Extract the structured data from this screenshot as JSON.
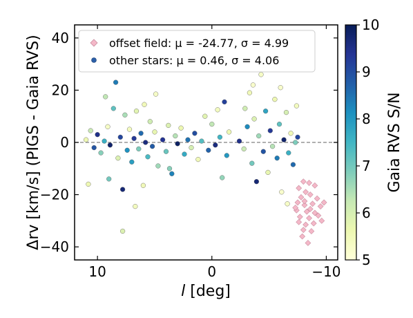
{
  "chart_data": {
    "type": "scatter",
    "xlabel": "l [deg]",
    "xlabel_italic_part": "l",
    "xlabel_rest": " [deg]",
    "ylabel": "Δrv [km/s] (PIGS - Gaia RVS)",
    "xlim": [
      12,
      -11
    ],
    "ylim": [
      -45,
      45
    ],
    "x_ticks": [
      10,
      0,
      -10
    ],
    "x_tick_labels": [
      "10",
      "0",
      "−10"
    ],
    "y_ticks": [
      -40,
      -20,
      0,
      20,
      40
    ],
    "y_tick_labels": [
      "−40",
      "−20",
      "0",
      "20",
      "40"
    ],
    "reference_line": {
      "y": 0,
      "style": "dashed",
      "color": "#808080"
    },
    "colorbar": {
      "label": "Gaia RVS S/N",
      "range": [
        5,
        10
      ],
      "ticks": [
        5,
        6,
        7,
        8,
        9,
        10
      ],
      "tick_labels": [
        "5",
        "6",
        "7",
        "8",
        "9",
        "10"
      ],
      "colormap": "YlGnBu",
      "stops": [
        "#ffffd9",
        "#edf8b1",
        "#c7e9b4",
        "#7fcdbb",
        "#41b6c4",
        "#1d91c0",
        "#225ea8",
        "#253494",
        "#081d58"
      ]
    },
    "legend": {
      "placement": "top-center",
      "entries": [
        {
          "marker": "diamond",
          "color": "#f4b8c8",
          "edge": "#c98ea0",
          "label": "offset field: μ = -24.77, σ = 4.99"
        },
        {
          "marker": "circle",
          "color": "#2c5fa8",
          "edge": "#1a3c70",
          "label": "other stars: μ = 0.46, σ = 4.06"
        }
      ]
    },
    "series": [
      {
        "name": "offset field: μ = -24.77, σ = 4.99",
        "marker": "diamond",
        "color": "#f4b8c8",
        "points": [
          [
            -7.6,
            -17.5
          ],
          [
            -8.0,
            -15.0
          ],
          [
            -8.5,
            -15.5
          ],
          [
            -9.0,
            -16.5
          ],
          [
            -8.2,
            -19.0
          ],
          [
            -7.8,
            -21.0
          ],
          [
            -8.6,
            -20.0
          ],
          [
            -9.2,
            -21.5
          ],
          [
            -7.5,
            -23.0
          ],
          [
            -8.1,
            -24.0
          ],
          [
            -8.8,
            -23.5
          ],
          [
            -9.5,
            -24.5
          ],
          [
            -7.4,
            -26.0
          ],
          [
            -8.3,
            -26.5
          ],
          [
            -9.0,
            -27.0
          ],
          [
            -7.7,
            -28.5
          ],
          [
            -8.5,
            -29.0
          ],
          [
            -9.3,
            -28.0
          ],
          [
            -7.6,
            -30.5
          ],
          [
            -8.2,
            -31.5
          ],
          [
            -8.9,
            -31.0
          ],
          [
            -9.6,
            -30.0
          ],
          [
            -8.0,
            -33.5
          ],
          [
            -8.7,
            -34.0
          ],
          [
            -7.9,
            -36.0
          ],
          [
            -8.4,
            -38.5
          ],
          [
            -8.1,
            -22.5
          ],
          [
            -9.8,
            -23.0
          ],
          [
            -7.3,
            -25.0
          ],
          [
            -8.6,
            -25.5
          ]
        ]
      },
      {
        "name": "other stars: μ = 0.46, σ = 4.06",
        "marker": "circle",
        "color_by": "Gaia RVS S/N",
        "points": [
          [
            11.0,
            1.0,
            5.6
          ],
          [
            10.6,
            4.5,
            6.2
          ],
          [
            10.3,
            -2.0,
            8.9
          ],
          [
            10.0,
            3.0,
            9.5
          ],
          [
            9.7,
            -4.0,
            6.8
          ],
          [
            9.4,
            0.5,
            7.6
          ],
          [
            9.1,
            6.0,
            5.3
          ],
          [
            8.9,
            -1.0,
            9.8
          ],
          [
            8.6,
            13.0,
            7.2
          ],
          [
            8.4,
            23.0,
            8.4
          ],
          [
            8.2,
            -6.0,
            5.9
          ],
          [
            8.0,
            2.0,
            9.1
          ],
          [
            7.8,
            -18.0,
            9.7
          ],
          [
            7.6,
            10.5,
            6.5
          ],
          [
            7.4,
            -3.0,
            8.1
          ],
          [
            7.2,
            5.0,
            5.4
          ],
          [
            7.0,
            -7.5,
            7.9
          ],
          [
            6.8,
            1.5,
            9.3
          ],
          [
            6.6,
            12.0,
            5.8
          ],
          [
            6.4,
            -2.5,
            6.9
          ],
          [
            6.2,
            3.5,
            8.6
          ],
          [
            6.0,
            -16.5,
            5.5
          ],
          [
            5.8,
            0.0,
            9.6
          ],
          [
            5.6,
            -5.5,
            7.4
          ],
          [
            5.4,
            8.0,
            6.1
          ],
          [
            5.2,
            -1.5,
            8.8
          ],
          [
            5.0,
            4.0,
            5.7
          ],
          [
            4.7,
            -9.0,
            6.6
          ],
          [
            4.5,
            28.0,
            5.3
          ],
          [
            4.3,
            1.0,
            9.4
          ],
          [
            4.0,
            -3.5,
            7.1
          ],
          [
            3.8,
            6.5,
            5.9
          ],
          [
            3.5,
            -12.0,
            8.3
          ],
          [
            3.2,
            2.5,
            6.4
          ],
          [
            3.0,
            -0.5,
            9.9
          ],
          [
            2.7,
            5.5,
            5.6
          ],
          [
            2.4,
            -4.5,
            7.7
          ],
          [
            2.1,
            1.0,
            8.5
          ],
          [
            1.8,
            -2.0,
            6.0
          ],
          [
            1.5,
            3.5,
            9.0
          ],
          [
            1.2,
            -6.5,
            5.5
          ],
          [
            0.9,
            0.5,
            7.3
          ],
          [
            0.6,
            10.0,
            5.8
          ],
          [
            0.3,
            -3.0,
            8.7
          ],
          [
            0.0,
            7.0,
            6.3
          ],
          [
            -0.3,
            -1.0,
            9.6
          ],
          [
            -0.5,
            12.5,
            5.4
          ],
          [
            -0.7,
            2.0,
            7.5
          ],
          [
            -0.9,
            -13.5,
            6.7
          ],
          [
            -1.1,
            15.5,
            9.2
          ],
          [
            -1.3,
            -5.0,
            8.0
          ],
          [
            -1.5,
            4.0,
            5.6
          ],
          [
            -2.4,
            0.5,
            9.5
          ],
          [
            -2.8,
            -2.5,
            6.2
          ],
          [
            -3.1,
            6.0,
            8.2
          ],
          [
            -3.3,
            19.0,
            5.5
          ],
          [
            -3.5,
            -8.0,
            7.0
          ],
          [
            -3.7,
            9.0,
            5.9
          ],
          [
            -3.9,
            -15.0,
            9.7
          ],
          [
            -4.1,
            2.5,
            6.6
          ],
          [
            -4.3,
            26.0,
            5.3
          ],
          [
            -4.5,
            -3.5,
            8.9
          ],
          [
            -4.7,
            12.0,
            7.8
          ],
          [
            -4.9,
            -11.5,
            5.7
          ],
          [
            -5.1,
            4.5,
            9.3
          ],
          [
            -5.3,
            -1.5,
            6.4
          ],
          [
            -5.5,
            16.5,
            5.6
          ],
          [
            -5.7,
            -6.0,
            8.4
          ],
          [
            -5.9,
            7.0,
            7.2
          ],
          [
            -6.1,
            -19.0,
            5.2
          ],
          [
            -6.3,
            1.0,
            9.8
          ],
          [
            -6.5,
            11.5,
            6.0
          ],
          [
            -6.7,
            -4.0,
            7.6
          ],
          [
            -6.9,
            3.5,
            5.5
          ],
          [
            -7.1,
            -8.5,
            8.6
          ],
          [
            -7.3,
            0.0,
            6.9
          ],
          [
            -7.5,
            2.0,
            9.1
          ],
          [
            -6.6,
            -23.5,
            5.3
          ],
          [
            6.7,
            -24.5,
            5.4
          ],
          [
            7.8,
            -34.0,
            5.9
          ],
          [
            -7.4,
            14.0,
            5.4
          ],
          [
            -6.0,
            21.0,
            5.2
          ],
          [
            -2.9,
            13.0,
            6.1
          ],
          [
            -3.6,
            22.0,
            5.2
          ],
          [
            10.8,
            -16.0,
            5.6
          ],
          [
            9.3,
            17.5,
            6.3
          ],
          [
            9.0,
            -14.0,
            7.0
          ],
          [
            5.9,
            14.5,
            5.5
          ],
          [
            4.9,
            18.5,
            5.3
          ],
          [
            3.7,
            -10.0,
            6.8
          ]
        ]
      }
    ]
  }
}
